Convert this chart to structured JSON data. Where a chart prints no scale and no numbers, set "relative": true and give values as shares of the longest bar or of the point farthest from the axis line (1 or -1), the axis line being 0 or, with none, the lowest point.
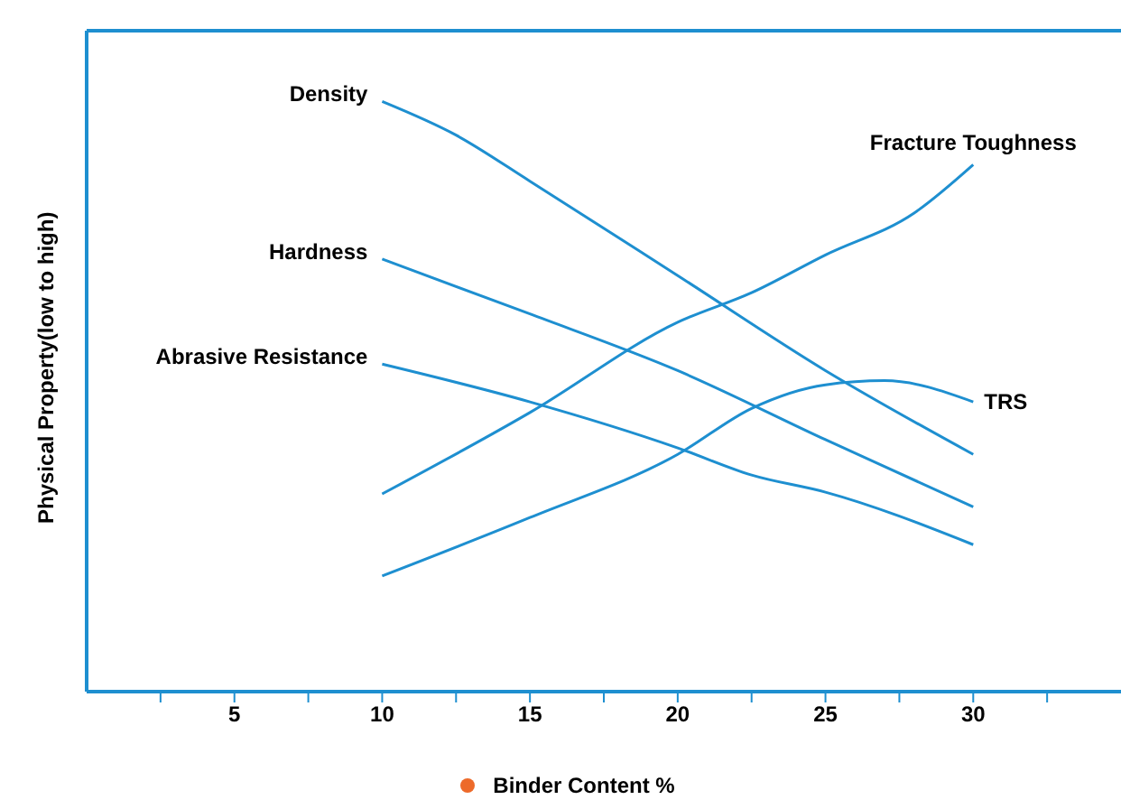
{
  "chart_data": {
    "type": "line",
    "relative": true,
    "xlabel": "Binder Content %",
    "ylabel": "Physical Property(low to high)",
    "xlim": [
      0,
      35
    ],
    "xticks": [
      {
        "value": 2.5,
        "label": null
      },
      5,
      {
        "value": 7.5,
        "label": null
      },
      10,
      {
        "value": 12.5,
        "label": null
      },
      15,
      {
        "value": 17.5,
        "label": null
      },
      20,
      {
        "value": 22.5,
        "label": null
      },
      25,
      {
        "value": 27.5,
        "label": null
      },
      30,
      {
        "value": 32.5,
        "label": null
      }
    ],
    "grid": false,
    "legend": false,
    "marker": "none",
    "line_style": "solid",
    "series": [
      {
        "name": "Density",
        "color": "#1e8fd0",
        "x": [
          10,
          12.5,
          15,
          20,
          25,
          30
        ],
        "values": [
          1,
          0.943,
          0.865,
          0.705,
          0.544,
          0.402
        ]
      },
      {
        "name": "Hardness",
        "color": "#1e8fd0",
        "x": [
          10,
          15,
          20,
          25,
          30
        ],
        "values": [
          0.733,
          0.64,
          0.544,
          0.427,
          0.313
        ]
      },
      {
        "name": "Abrasive Resistance",
        "color": "#1e8fd0",
        "x": [
          10,
          15,
          20,
          22.5,
          25,
          30
        ],
        "values": [
          0.555,
          0.491,
          0.413,
          0.367,
          0.338,
          0.249
        ]
      },
      {
        "name": "Fracture Toughness",
        "color": "#1e8fd0",
        "x": [
          10,
          15,
          20,
          22.5,
          25,
          28,
          30
        ],
        "values": [
          0.335,
          0.473,
          0.626,
          0.676,
          0.74,
          0.811,
          0.893
        ]
      },
      {
        "name": "TRS",
        "color": "#1e8fd0",
        "x": [
          10,
          15,
          20,
          22.5,
          25,
          27,
          30
        ],
        "values": [
          0.196,
          0.295,
          0.402,
          0.48,
          0.52,
          0.527,
          0.491
        ]
      }
    ]
  }
}
